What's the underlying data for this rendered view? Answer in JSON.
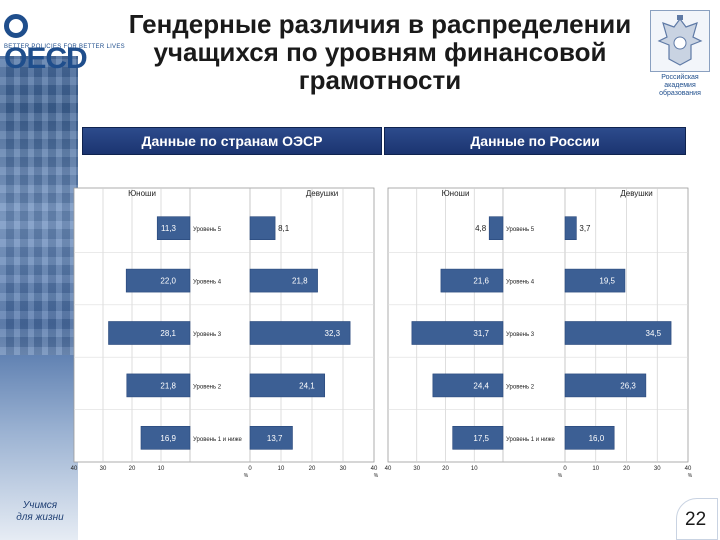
{
  "header": {
    "logo_text": "OECD",
    "logo_tagline": "BETTER POLICIES FOR BETTER LIVES",
    "title_lines": [
      "Гендерные различия в распределении",
      "учащихся по уровням финансовой",
      "грамотности"
    ],
    "academy_label": "Российская академия образования"
  },
  "footer": {
    "motto_line1": "Учимся",
    "motto_line2": "для жизни",
    "page_number": "22"
  },
  "colors": {
    "bar": "#3c5f94",
    "bar_edge": "#27467a",
    "header_bg": "#1f3b7a",
    "grid": "#d0d0d0"
  },
  "chart_data": [
    {
      "type": "bar",
      "panel_title": "Данные по странам ОЭСР",
      "left_label": "Юноши",
      "right_label": "Девушки",
      "categories": [
        "Уровень 5",
        "Уровень 4",
        "Уровень 3",
        "Уровень 2",
        "Уровень 1 и ниже"
      ],
      "series": [
        {
          "name": "Юноши",
          "values": [
            11.3,
            22.0,
            28.1,
            21.8,
            16.9
          ],
          "labels": [
            "11,3",
            "22,0",
            "28,1",
            "21,8",
            "16,9"
          ]
        },
        {
          "name": "Девушки",
          "values": [
            8.1,
            21.8,
            32.3,
            24.1,
            13.7
          ],
          "labels": [
            "8,1",
            "21,8",
            "32,3",
            "24,1",
            "13,7"
          ]
        }
      ],
      "left_ticks": [
        "40",
        "30",
        "20",
        "10"
      ],
      "right_ticks": [
        "0",
        "10",
        "20",
        "30",
        "40"
      ],
      "unit": "%",
      "xlim": [
        0,
        40
      ]
    },
    {
      "type": "bar",
      "panel_title": "Данные по России",
      "left_label": "Юноши",
      "right_label": "Девушки",
      "categories": [
        "Уровень 5",
        "Уровень 4",
        "Уровень 3",
        "Уровень 2",
        "Уровень 1 и ниже"
      ],
      "series": [
        {
          "name": "Юноши",
          "values": [
            4.8,
            21.6,
            31.7,
            24.4,
            17.5
          ],
          "labels": [
            "4,8",
            "21,6",
            "31,7",
            "24,4",
            "17,5"
          ]
        },
        {
          "name": "Девушки",
          "values": [
            3.7,
            19.5,
            34.5,
            26.3,
            16.0
          ],
          "labels": [
            "3,7",
            "19,5",
            "34,5",
            "26,3",
            "16,0"
          ]
        }
      ],
      "left_ticks": [
        "40",
        "30",
        "20",
        "10"
      ],
      "right_ticks": [
        "0",
        "10",
        "20",
        "30",
        "40"
      ],
      "unit": "%",
      "xlim": [
        0,
        40
      ]
    }
  ]
}
